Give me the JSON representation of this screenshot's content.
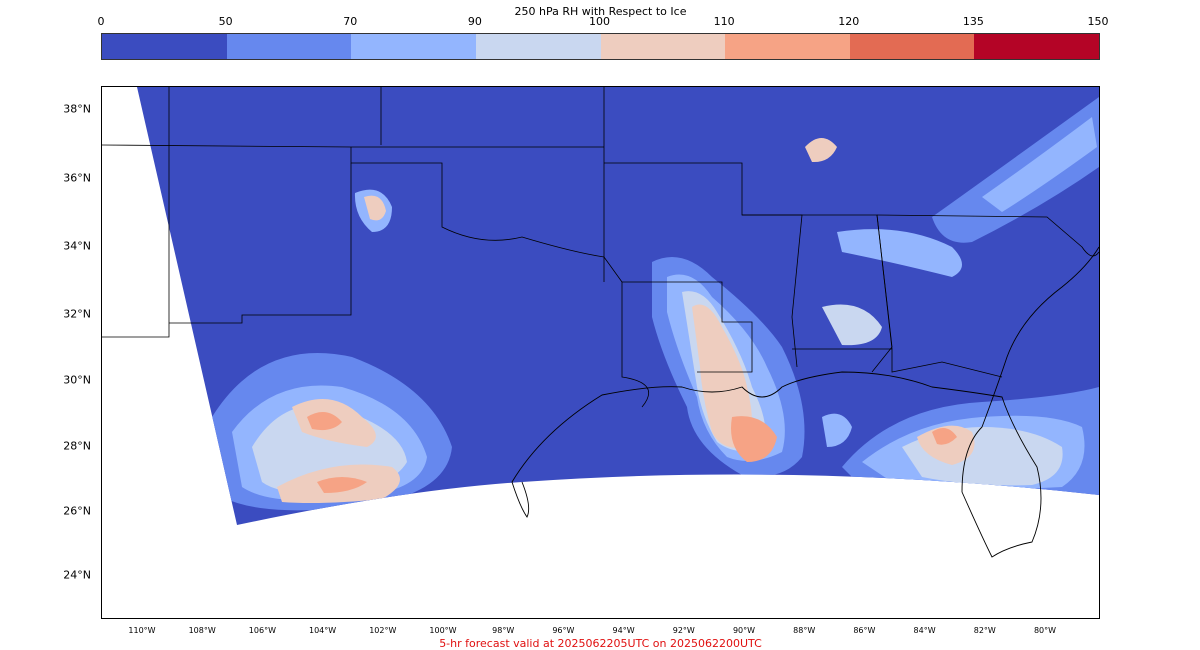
{
  "colorbar": {
    "title": "250 hPa RH with Respect to Ice",
    "ticks": [
      "0",
      "50",
      "70",
      "90",
      "100",
      "110",
      "120",
      "135",
      "150"
    ],
    "colors": [
      "#3b4cc0",
      "#6688ee",
      "#93b5fe",
      "#c9d7f0",
      "#eecdbf",
      "#f6a385",
      "#e36b53",
      "#b40426"
    ]
  },
  "map": {
    "background_color": "#3b4cc0",
    "lat_labels": [
      "38°N",
      "36°N",
      "34°N",
      "32°N",
      "30°N",
      "28°N",
      "26°N",
      "24°N"
    ],
    "lon_labels": [
      "110°W",
      "108°W",
      "106°W",
      "104°W",
      "102°W",
      "100°W",
      "98°W",
      "96°W",
      "94°W",
      "92°W",
      "90°W",
      "88°W",
      "86°W",
      "84°W",
      "82°W",
      "80°W"
    ]
  },
  "caption": "5-hr forecast valid at 2025062205UTC on 2025062200UTC"
}
